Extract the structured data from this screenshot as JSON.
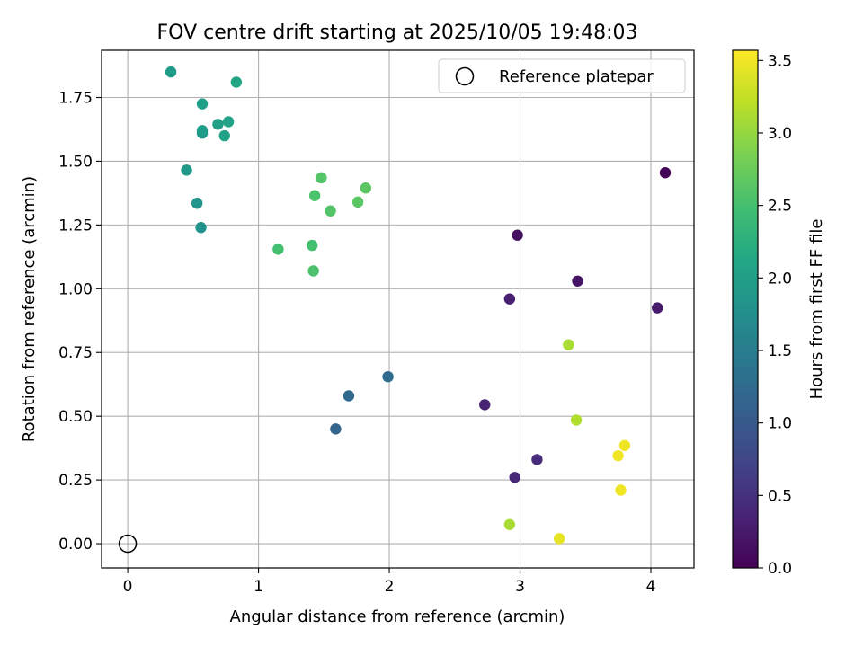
{
  "chart_data": {
    "type": "scatter",
    "title": "FOV centre drift starting at 2025/10/05 19:48:03",
    "xlabel": "Angular distance from reference (arcmin)",
    "ylabel": "Rotation from reference (arcmin)",
    "xlim": [
      -0.2,
      4.33
    ],
    "ylim": [
      -0.095,
      1.935
    ],
    "xticks": [
      "0",
      "1",
      "2",
      "3",
      "4"
    ],
    "yticks": [
      "0.00",
      "0.25",
      "0.50",
      "0.75",
      "1.00",
      "1.25",
      "1.50",
      "1.75"
    ],
    "grid": true,
    "legend": {
      "placement": "top-right",
      "entries": [
        "Reference platepar"
      ]
    },
    "reference": {
      "name": "Reference platepar",
      "x": 0.0,
      "y": 0.0
    },
    "colorbar": {
      "label": "Hours from first FF file",
      "colormap": "viridis",
      "range": [
        0.0,
        3.57
      ],
      "ticks": [
        "0.0",
        "0.5",
        "1.0",
        "1.5",
        "2.0",
        "2.5",
        "3.0",
        "3.5"
      ]
    },
    "points": [
      {
        "x": 4.11,
        "y": 1.455,
        "hours": 0.05
      },
      {
        "x": 2.98,
        "y": 1.21,
        "hours": 0.15
      },
      {
        "x": 3.44,
        "y": 1.03,
        "hours": 0.2
      },
      {
        "x": 4.05,
        "y": 0.925,
        "hours": 0.25
      },
      {
        "x": 2.92,
        "y": 0.96,
        "hours": 0.3
      },
      {
        "x": 2.73,
        "y": 0.545,
        "hours": 0.35
      },
      {
        "x": 2.96,
        "y": 0.26,
        "hours": 0.4
      },
      {
        "x": 3.13,
        "y": 0.33,
        "hours": 0.45
      },
      {
        "x": 1.59,
        "y": 0.45,
        "hours": 1.15
      },
      {
        "x": 1.69,
        "y": 0.58,
        "hours": 1.2
      },
      {
        "x": 1.99,
        "y": 0.655,
        "hours": 1.25
      },
      {
        "x": 0.56,
        "y": 1.24,
        "hours": 1.8
      },
      {
        "x": 0.53,
        "y": 1.335,
        "hours": 1.85
      },
      {
        "x": 0.45,
        "y": 1.465,
        "hours": 1.9
      },
      {
        "x": 0.57,
        "y": 1.61,
        "hours": 1.9
      },
      {
        "x": 0.57,
        "y": 1.62,
        "hours": 1.95
      },
      {
        "x": 0.33,
        "y": 1.85,
        "hours": 1.95
      },
      {
        "x": 0.57,
        "y": 1.725,
        "hours": 2.0
      },
      {
        "x": 0.69,
        "y": 1.645,
        "hours": 2.0
      },
      {
        "x": 0.74,
        "y": 1.6,
        "hours": 2.05
      },
      {
        "x": 0.77,
        "y": 1.655,
        "hours": 2.05
      },
      {
        "x": 0.83,
        "y": 1.81,
        "hours": 2.1
      },
      {
        "x": 1.15,
        "y": 1.155,
        "hours": 2.5
      },
      {
        "x": 1.41,
        "y": 1.17,
        "hours": 2.5
      },
      {
        "x": 1.42,
        "y": 1.07,
        "hours": 2.55
      },
      {
        "x": 1.43,
        "y": 1.365,
        "hours": 2.55
      },
      {
        "x": 1.48,
        "y": 1.435,
        "hours": 2.6
      },
      {
        "x": 1.55,
        "y": 1.305,
        "hours": 2.6
      },
      {
        "x": 1.76,
        "y": 1.34,
        "hours": 2.65
      },
      {
        "x": 1.82,
        "y": 1.395,
        "hours": 2.65
      },
      {
        "x": 2.92,
        "y": 0.075,
        "hours": 3.1
      },
      {
        "x": 3.37,
        "y": 0.78,
        "hours": 3.1
      },
      {
        "x": 3.43,
        "y": 0.485,
        "hours": 3.15
      },
      {
        "x": 3.3,
        "y": 0.02,
        "hours": 3.45
      },
      {
        "x": 3.75,
        "y": 0.345,
        "hours": 3.5
      },
      {
        "x": 3.77,
        "y": 0.21,
        "hours": 3.5
      },
      {
        "x": 3.8,
        "y": 0.385,
        "hours": 3.5
      }
    ]
  }
}
